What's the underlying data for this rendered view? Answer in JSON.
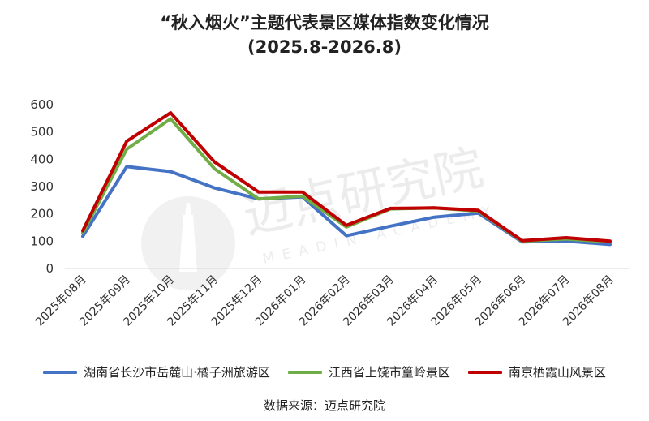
{
  "title": "“秋入烟火”主题代表景区媒体指数变化情况",
  "subtitle": "(2025.8-2026.8)",
  "source": "数据来源：迈点研究院",
  "watermark": {
    "text": "迈点研究院",
    "subtext": "MEADIN ACADEMY"
  },
  "colors": {
    "axis": "#d9d9d9",
    "text": "#333333"
  },
  "chart_data": {
    "type": "line",
    "categories": [
      "2025年08月",
      "2025年09月",
      "2025年10月",
      "2025年11月",
      "2025年12月",
      "2026年01月",
      "2026年02月",
      "2026年03月",
      "2026年04月",
      "2026年05月",
      "2026年06月",
      "2026年07月",
      "2026年08月"
    ],
    "ylim": [
      0,
      600
    ],
    "yticks": [
      0,
      100,
      200,
      300,
      400,
      500,
      600
    ],
    "grid": false,
    "legend_position": "bottom",
    "series": [
      {
        "name": "湖南省长沙市岳麓山·橘子洲旅游区",
        "color": "#4472c4",
        "values": [
          118,
          373,
          355,
          295,
          255,
          262,
          120,
          155,
          188,
          203,
          97,
          100,
          88
        ]
      },
      {
        "name": "江西省上饶市篁岭景区",
        "color": "#70ad47",
        "values": [
          130,
          437,
          548,
          365,
          255,
          265,
          152,
          218,
          222,
          210,
          100,
          108,
          97
        ]
      },
      {
        "name": "南京栖霞山风景区",
        "color": "#c00000",
        "values": [
          138,
          466,
          570,
          390,
          280,
          280,
          158,
          220,
          222,
          213,
          102,
          113,
          100
        ]
      }
    ]
  }
}
